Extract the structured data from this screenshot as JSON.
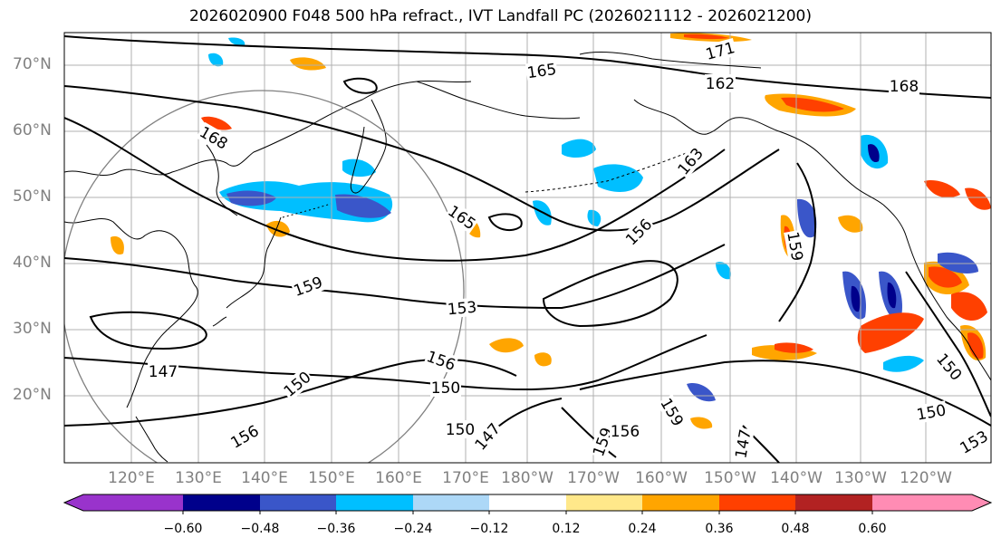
{
  "title": "2026020900 F048 500 hPa refract., IVT Landfall PC (2026021112 - 2026021200)",
  "lat_labels": [
    "70°N",
    "60°N",
    "50°N",
    "40°N",
    "30°N",
    "20°N"
  ],
  "lon_labels": [
    "120°E",
    "130°E",
    "140°E",
    "150°E",
    "160°E",
    "170°E",
    "180°W",
    "170°W",
    "160°W",
    "150°W",
    "140°W",
    "130°W",
    "120°W"
  ],
  "contour_labels": [
    "171",
    "165",
    "162",
    "168",
    "168",
    "163",
    "165",
    "156",
    "159",
    "159",
    "153",
    "147",
    "150",
    "156",
    "150",
    "150",
    "147",
    "159",
    "156",
    "159",
    "147",
    "150",
    "150",
    "153",
    "156"
  ],
  "colorbar": {
    "colors": [
      "#9933cc",
      "#00008b",
      "#3a56c9",
      "#00bfff",
      "#add8f7",
      "#ffffff",
      "#ffe88a",
      "#ffa500",
      "#ff4000",
      "#b22222",
      "#ff8cb4"
    ],
    "ticks": [
      "−0.60",
      "−0.48",
      "−0.36",
      "−0.24",
      "−0.12",
      "0.12",
      "0.24",
      "0.36",
      "0.48",
      "0.60"
    ]
  },
  "colors": {
    "ocean": "#ffffff",
    "coast": "#000000",
    "grid": "#b0b0b0",
    "circle": "#808080"
  }
}
